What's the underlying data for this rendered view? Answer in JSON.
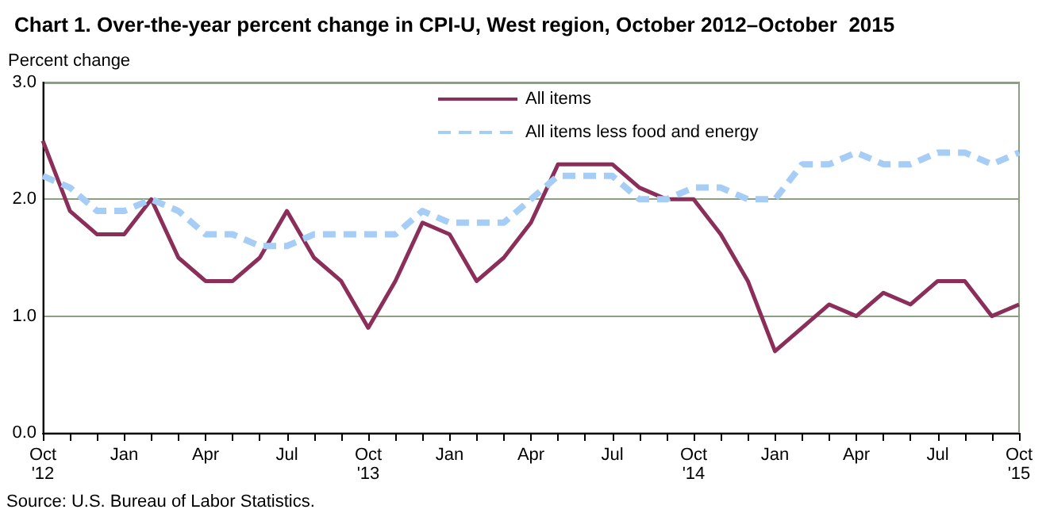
{
  "chart_data": {
    "type": "line",
    "title": "Chart 1. Over-the-year percent change in CPI-U, West region, October 2012–October  2015",
    "ylabel": "Percent change",
    "categories": [
      "Oct\n'12",
      null,
      null,
      "Jan",
      null,
      null,
      "Apr",
      null,
      null,
      "Jul",
      null,
      null,
      "Oct\n'13",
      null,
      null,
      "Jan",
      null,
      null,
      "Apr",
      null,
      null,
      "Jul",
      null,
      null,
      "Oct\n'14",
      null,
      null,
      "Jan",
      null,
      null,
      "Apr",
      null,
      null,
      "Jul",
      null,
      null,
      "Oct\n'15"
    ],
    "series": [
      {
        "name": "All items",
        "color": "#8b2e5a",
        "line_style": "solid",
        "values": [
          2.5,
          1.9,
          1.7,
          1.7,
          2.0,
          1.5,
          1.3,
          1.3,
          1.5,
          1.9,
          1.5,
          1.3,
          0.9,
          1.3,
          1.8,
          1.7,
          1.3,
          1.5,
          1.8,
          2.3,
          2.3,
          2.3,
          2.1,
          2.0,
          2.0,
          1.7,
          1.3,
          0.7,
          0.9,
          1.1,
          1.0,
          1.2,
          1.1,
          1.3,
          1.3,
          1.0,
          1.1
        ]
      },
      {
        "name": "All items less food and energy",
        "color": "#a6cdf5",
        "line_style": "dashed",
        "values": [
          2.2,
          2.1,
          1.9,
          1.9,
          2.0,
          1.9,
          1.7,
          1.7,
          1.6,
          1.6,
          1.7,
          1.7,
          1.7,
          1.7,
          1.9,
          1.8,
          1.8,
          1.8,
          2.0,
          2.2,
          2.2,
          2.2,
          2.0,
          2.0,
          2.1,
          2.1,
          2.0,
          2.0,
          2.3,
          2.3,
          2.4,
          2.3,
          2.3,
          2.4,
          2.4,
          2.3,
          2.4
        ]
      }
    ],
    "ylim": [
      0,
      3
    ],
    "yticks": [
      {
        "value": 0,
        "label": "0.0"
      },
      {
        "value": 1,
        "label": "1.0"
      },
      {
        "value": 2,
        "label": "2.0"
      },
      {
        "value": 3,
        "label": "3.0"
      }
    ],
    "grid": "y",
    "legend": "top",
    "marker": "none",
    "annotations": [
      "Source: U.S. Bureau of Labor Statistics."
    ]
  }
}
